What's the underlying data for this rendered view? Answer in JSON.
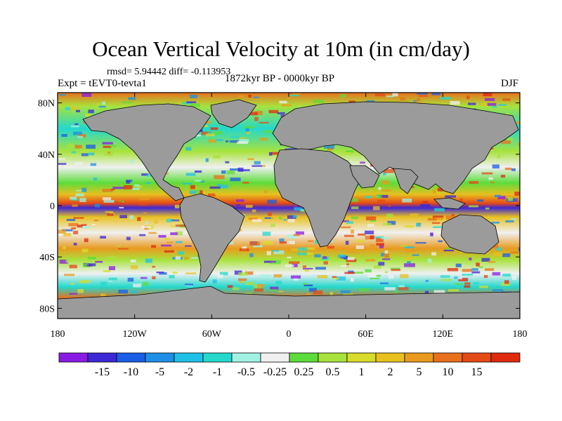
{
  "title": "Ocean Vertical Velocity at 10m (in cm/day)",
  "stats": "rmsd= 5.94442 diff= -0.113953",
  "experiment": "Expt = tEVT0-tevta1",
  "period": "1872kyr BP - 0000kyr BP",
  "season": "DJF",
  "map": {
    "land_color": "#9b9b9b",
    "lat_ticks": [
      "80N",
      "40N",
      "0",
      "40S",
      "80S"
    ],
    "lat_values": [
      80,
      40,
      0,
      -40,
      -80
    ],
    "lon_ticks": [
      "180",
      "120W",
      "60W",
      "0",
      "60E",
      "120E",
      "180"
    ],
    "lon_values": [
      -180,
      -120,
      -60,
      0,
      60,
      120,
      180
    ]
  },
  "colorbar": {
    "colors": [
      "#8a1be6",
      "#3c28d6",
      "#1a5de6",
      "#1e8fe6",
      "#1ec0e8",
      "#24d8cc",
      "#a2f2e4",
      "#f0f0f0",
      "#5cdc3a",
      "#a8e23c",
      "#d8dc2a",
      "#e8c020",
      "#e89a1e",
      "#e8701c",
      "#e44a16",
      "#e02a0e"
    ],
    "labels": [
      "-15",
      "-10",
      "-5",
      "-2",
      "-1",
      "-0.5",
      "-0.25",
      "0.25",
      "0.5",
      "1",
      "2",
      "5",
      "10",
      "15"
    ]
  }
}
